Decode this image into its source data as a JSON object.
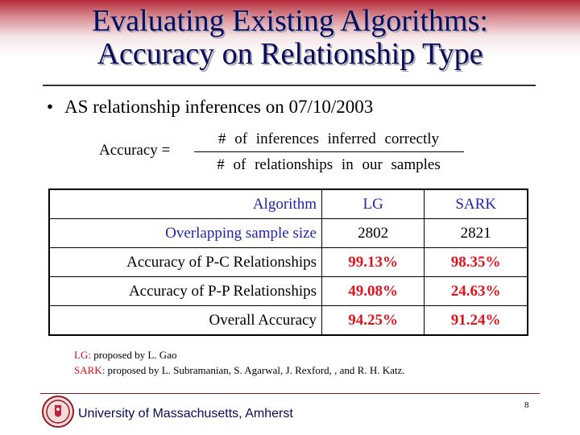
{
  "slide": {
    "title_line1": "Evaluating Existing Algorithms:",
    "title_line2": "Accuracy on Relationship Type",
    "bullet": "AS relationship inferences on 07/10/2003"
  },
  "formula": {
    "lhs": "Accuracy =",
    "numerator": "# of inferences inferred correctly",
    "denominator": "# of relationships in our samples"
  },
  "table": {
    "header": [
      "Algorithm",
      "LG",
      "SARK"
    ],
    "rows": [
      {
        "label": "Overlapping sample size",
        "lg": "2802",
        "sark": "2821"
      },
      {
        "label": "Accuracy of P-C Relationships",
        "lg": "99.13%",
        "sark": "98.35%"
      },
      {
        "label": "Accuracy of P-P Relationships",
        "lg": "49.08%",
        "sark": "24.63%"
      },
      {
        "label": "Overall Accuracy",
        "lg": "94.25%",
        "sark": "91.24%"
      }
    ]
  },
  "credits": {
    "lg_key": "LG:",
    "lg_text": "proposed by L. Gao",
    "sark_key": "SARK:",
    "sark_text": "proposed by L. Subramanian, S. Agarwal, J. Rexford, , and R. H. Katz."
  },
  "footer": {
    "university": "University of Massachusetts, Amherst",
    "page_number": "8",
    "seal_icon": "university-seal-icon"
  },
  "colors": {
    "title": "#0b0b5c",
    "header_blue": "#2323b0",
    "value_red": "#e0141e",
    "band_top": "#b52a3a"
  }
}
